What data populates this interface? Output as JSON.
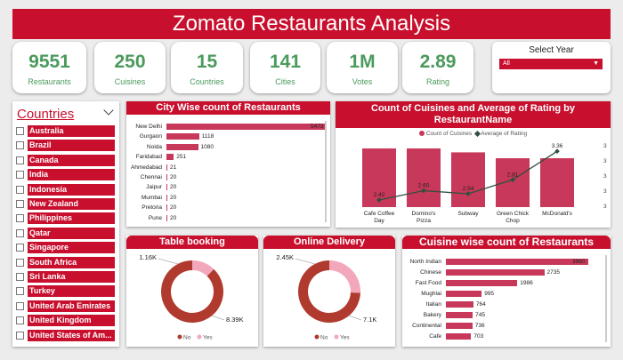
{
  "header": {
    "title": "Zomato Restaurants Analysis"
  },
  "kpis": [
    {
      "value": "9551",
      "label": "Restaurants"
    },
    {
      "value": "250",
      "label": "Cuisines"
    },
    {
      "value": "15",
      "label": "Countries"
    },
    {
      "value": "141",
      "label": "Cities"
    },
    {
      "value": "1M",
      "label": "Votes"
    },
    {
      "value": "2.89",
      "label": "Rating"
    }
  ],
  "year_filter": {
    "label": "Select Year",
    "selected": "All"
  },
  "countries": {
    "title": "Countries",
    "items": [
      "Australia",
      "Brazil",
      "Canada",
      "India",
      "Indonesia",
      "New Zealand",
      "Philippines",
      "Qatar",
      "Singapore",
      "South Africa",
      "Sri Lanka",
      "Turkey",
      "United Arab Emirates",
      "United Kingdom",
      "United States of Am..."
    ]
  },
  "city_chart": {
    "title": "City Wise count of Restaurants",
    "chart_data": {
      "type": "bar",
      "orientation": "horizontal",
      "categories": [
        "New Delhi",
        "Gurgaon",
        "Noida",
        "Faridabad",
        "Ahmedabad",
        "Chennai",
        "Jaipur",
        "Mumbai",
        "Pretoria",
        "Pune"
      ],
      "values": [
        5473,
        1118,
        1080,
        251,
        21,
        20,
        20,
        20,
        20,
        20
      ],
      "labels": [
        "5473",
        "1118",
        "1080",
        "251",
        "21",
        "20",
        "20",
        "20",
        "20",
        "20"
      ]
    }
  },
  "combo_chart": {
    "title": "Count of Cuisines and Average of Rating by RestaurantName",
    "legend": [
      "Count of Cuisines",
      "Average of Rating"
    ],
    "axis_ticks": [
      "3",
      "3",
      "3",
      "3",
      "3"
    ],
    "chart_data": {
      "type": "bar",
      "categories": [
        "Cafe Coffee Day",
        "Domino's Pizza",
        "Subway",
        "Green Chick Chop",
        "McDonald's"
      ],
      "series": [
        {
          "name": "Count of Cuisines",
          "values": [
            3.0,
            3.0,
            2.8,
            2.5,
            2.5
          ]
        },
        {
          "name": "Average of Rating",
          "values": [
            2.42,
            2.6,
            2.54,
            2.81,
            3.36
          ]
        }
      ],
      "labels": [
        "2.42",
        "2.60",
        "2.54",
        "2.81",
        "3.36"
      ]
    }
  },
  "table_booking": {
    "title": "Table booking",
    "chart_data": {
      "type": "pie",
      "donut": true,
      "categories": [
        "No",
        "Yes"
      ],
      "values": [
        8390,
        1160
      ],
      "labels": [
        "8.39K",
        "1.16K"
      ]
    },
    "legend": [
      "No",
      "Yes"
    ],
    "colors": [
      "#b03a2e",
      "#f2a7bb"
    ]
  },
  "online_delivery": {
    "title": "Online Delivery",
    "chart_data": {
      "type": "pie",
      "donut": true,
      "categories": [
        "No",
        "Yes"
      ],
      "values": [
        7100,
        2450
      ],
      "labels": [
        "7.1K",
        "2.45K"
      ]
    },
    "legend": [
      "No",
      "Yes"
    ],
    "colors": [
      "#b03a2e",
      "#f2a7bb"
    ]
  },
  "cuisine_chart": {
    "title": "Cuisine wise count of Restaurants",
    "chart_data": {
      "type": "bar",
      "orientation": "horizontal",
      "categories": [
        "North Indian",
        "Chinese",
        "Fast Food",
        "Mughlai",
        "Italian",
        "Bakery",
        "Continental",
        "Cafe"
      ],
      "values": [
        3960,
        2735,
        1986,
        995,
        764,
        745,
        736,
        703
      ],
      "labels": [
        "3960",
        "2735",
        "1986",
        "995",
        "764",
        "745",
        "736",
        "703"
      ]
    }
  }
}
